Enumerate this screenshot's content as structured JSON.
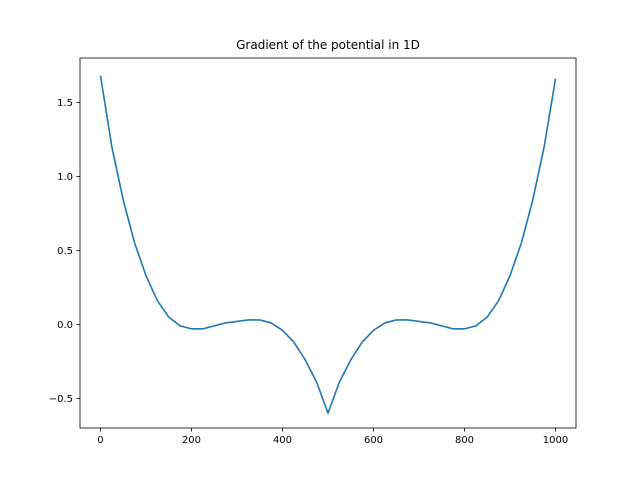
{
  "chart_data": {
    "type": "line",
    "title": "Gradient of the potential in 1D",
    "xlabel": "",
    "ylabel": "",
    "xlim": [
      -45,
      1045
    ],
    "ylim": [
      -0.7,
      1.8
    ],
    "xticks": [
      0,
      200,
      400,
      600,
      800,
      1000
    ],
    "xtick_labels": [
      "0",
      "200",
      "400",
      "600",
      "800",
      "1000"
    ],
    "yticks": [
      -0.5,
      0.0,
      0.5,
      1.0,
      1.5
    ],
    "ytick_labels": [
      "−0.5",
      "0.0",
      "0.5",
      "1.0",
      "1.5"
    ],
    "grid": false,
    "legend": "none",
    "series": [
      {
        "color": "#1f77b4",
        "x": [
          0,
          25,
          50,
          75,
          100,
          125,
          150,
          175,
          200,
          225,
          250,
          275,
          300,
          325,
          350,
          375,
          400,
          425,
          450,
          475,
          500,
          525,
          550,
          575,
          600,
          625,
          650,
          675,
          700,
          725,
          750,
          775,
          800,
          825,
          850,
          875,
          900,
          925,
          950,
          975,
          1000
        ],
        "y": [
          1.68,
          1.2,
          0.84,
          0.55,
          0.33,
          0.16,
          0.05,
          -0.01,
          -0.03,
          -0.03,
          -0.01,
          0.01,
          0.02,
          0.03,
          0.03,
          0.01,
          -0.04,
          -0.12,
          -0.24,
          -0.39,
          -0.6,
          -0.39,
          -0.24,
          -0.12,
          -0.04,
          0.01,
          0.03,
          0.03,
          0.02,
          0.01,
          -0.01,
          -0.03,
          -0.03,
          -0.01,
          0.05,
          0.16,
          0.33,
          0.55,
          0.84,
          1.2,
          1.66
        ]
      }
    ]
  }
}
